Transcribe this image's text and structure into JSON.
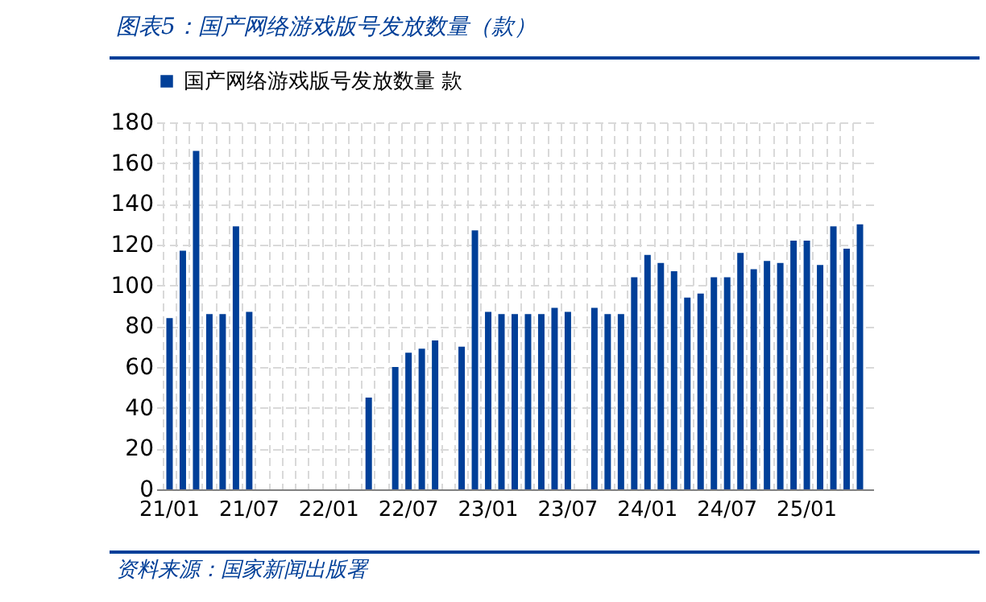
{
  "chart_data": {
    "type": "bar",
    "title": "图表5：国产网络游戏版号发放数量（款）",
    "categories": [
      "21/01",
      null,
      null,
      null,
      null,
      null,
      "21/07",
      null,
      null,
      null,
      null,
      null,
      "22/01",
      null,
      null,
      null,
      null,
      null,
      "22/07",
      null,
      null,
      null,
      null,
      null,
      "23/01",
      null,
      null,
      null,
      null,
      null,
      "23/07",
      null,
      null,
      null,
      null,
      null,
      "24/01",
      null,
      null,
      null,
      null,
      null,
      "24/07",
      null,
      null,
      null,
      null,
      null,
      "25/01",
      null,
      null,
      null,
      null
    ],
    "series": [
      {
        "name": "国产网络游戏版号发放数量 款",
        "color": "#003f98",
        "values": [
          84,
          117,
          166,
          86,
          86,
          129,
          87,
          null,
          null,
          null,
          null,
          null,
          null,
          null,
          null,
          45,
          null,
          60,
          67,
          69,
          73,
          null,
          70,
          127,
          87,
          86,
          86,
          86,
          86,
          89,
          87,
          null,
          89,
          86,
          86,
          104,
          115,
          111,
          107,
          94,
          96,
          104,
          104,
          116,
          108,
          112,
          111,
          122,
          122,
          110,
          129,
          118,
          130
        ]
      }
    ],
    "ylim": [
      0,
      180
    ],
    "yticks": [
      0,
      20,
      40,
      60,
      80,
      100,
      120,
      140,
      160,
      180
    ],
    "grid": true,
    "legend": "top",
    "annotations": [
      "资料来源：国家新闻出版署"
    ]
  }
}
